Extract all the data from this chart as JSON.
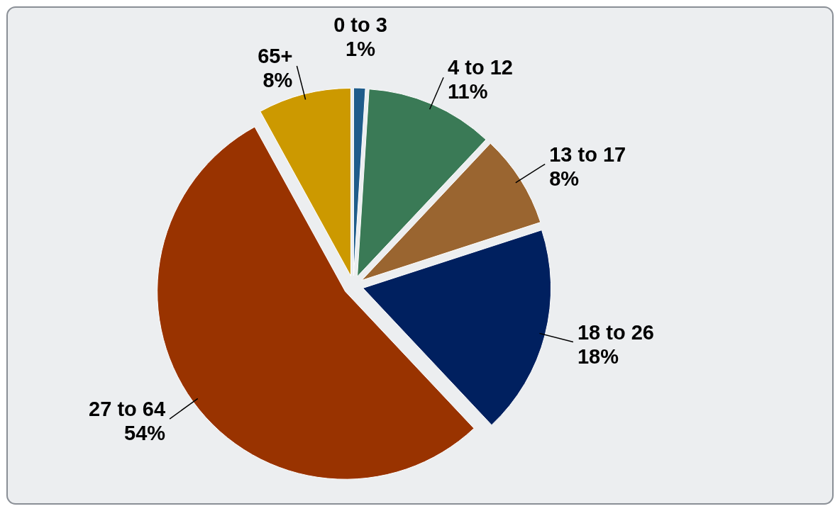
{
  "chart_data": {
    "type": "pie",
    "categories": [
      "0 to 3",
      "4 to 12",
      "13 to 17",
      "18 to 26",
      "27 to 64",
      "65+"
    ],
    "values": [
      1,
      11,
      8,
      18,
      54,
      8
    ],
    "value_labels": [
      "1%",
      "11%",
      "8%",
      "18%",
      "54%",
      "8%"
    ],
    "colors": [
      "#1f5c8b",
      "#3a7a56",
      "#9a6530",
      "#00205f",
      "#993300",
      "#cc9900"
    ]
  }
}
